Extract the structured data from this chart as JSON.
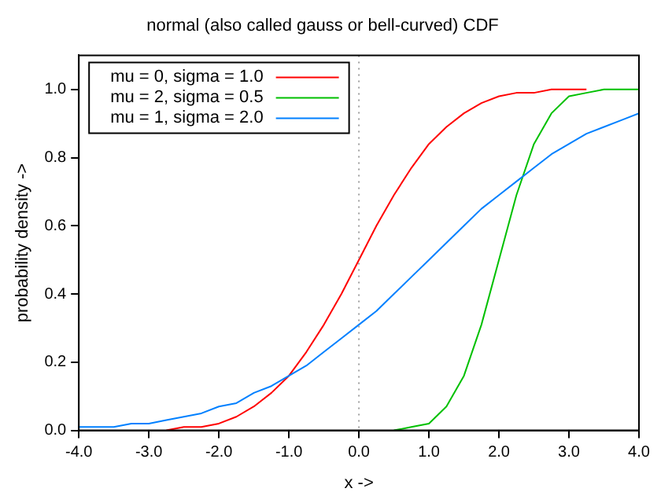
{
  "chart_data": {
    "type": "line",
    "title": "normal (also called gauss or bell-curved) CDF",
    "xlabel": "x ->",
    "ylabel": "probability density ->",
    "x": [
      -4,
      -3.75,
      -3.5,
      -3.25,
      -3,
      -2.75,
      -2.5,
      -2.25,
      -2,
      -1.75,
      -1.5,
      -1.25,
      -1,
      -0.75,
      -0.5,
      -0.25,
      0,
      0.25,
      0.5,
      0.75,
      1,
      1.25,
      1.5,
      1.75,
      2,
      2.25,
      2.5,
      2.75,
      3,
      3.25,
      3.5,
      3.75,
      4
    ],
    "series": [
      {
        "name": "mu = 0, sigma = 1.0",
        "color": "#ff0000",
        "values": [
          null,
          null,
          null,
          null,
          null,
          0,
          0.01,
          0.01,
          0.02,
          0.04,
          0.07,
          0.11,
          0.16,
          0.23,
          0.31,
          0.4,
          0.5,
          0.6,
          0.69,
          0.77,
          0.84,
          0.89,
          0.93,
          0.96,
          0.98,
          0.99,
          0.99,
          1,
          1,
          1,
          null,
          null,
          null
        ]
      },
      {
        "name": "mu = 2, sigma = 0.5",
        "color": "#00c000",
        "values": [
          null,
          null,
          null,
          null,
          null,
          null,
          null,
          null,
          null,
          null,
          null,
          null,
          null,
          null,
          null,
          null,
          null,
          null,
          0,
          0.01,
          0.02,
          0.07,
          0.16,
          0.31,
          0.5,
          0.69,
          0.84,
          0.93,
          0.98,
          0.99,
          1,
          1,
          1
        ]
      },
      {
        "name": "mu = 1, sigma = 2.0",
        "color": "#0080ff",
        "values": [
          0.01,
          0.01,
          0.01,
          0.02,
          0.02,
          0.03,
          0.04,
          0.05,
          0.07,
          0.08,
          0.11,
          0.13,
          0.16,
          0.19,
          0.23,
          0.27,
          0.31,
          0.35,
          0.4,
          0.45,
          0.5,
          0.55,
          0.6,
          0.65,
          0.69,
          0.73,
          0.77,
          0.81,
          0.84,
          0.87,
          0.89,
          0.91,
          0.93
        ]
      }
    ],
    "xlim": [
      -4,
      4
    ],
    "xticks": [
      {
        "value": -4,
        "label": "-4.0"
      },
      {
        "value": -3,
        "label": "-3.0"
      },
      {
        "value": -2,
        "label": "-2.0"
      },
      {
        "value": -1,
        "label": "-1.0"
      },
      {
        "value": 0,
        "label": "0.0"
      },
      {
        "value": 1,
        "label": "1.0"
      },
      {
        "value": 2,
        "label": "2.0"
      },
      {
        "value": 3,
        "label": "3.0"
      },
      {
        "value": 4,
        "label": "4.0"
      }
    ],
    "ylim": [
      0,
      1.1
    ],
    "yticks": [
      {
        "value": 0,
        "label": "0.0"
      },
      {
        "value": 0.2,
        "label": "0.2"
      },
      {
        "value": 0.4,
        "label": "0.4"
      },
      {
        "value": 0.6,
        "label": "0.6"
      },
      {
        "value": 0.8,
        "label": "0.8"
      },
      {
        "value": 1,
        "label": "1.0"
      }
    ],
    "ref_lines": [
      {
        "axis": "x",
        "value": 0,
        "color": "#a0a0a0",
        "line_style": "dotted"
      }
    ],
    "legend": "top left",
    "grid": false,
    "marker": "none",
    "line_style": "solid"
  }
}
